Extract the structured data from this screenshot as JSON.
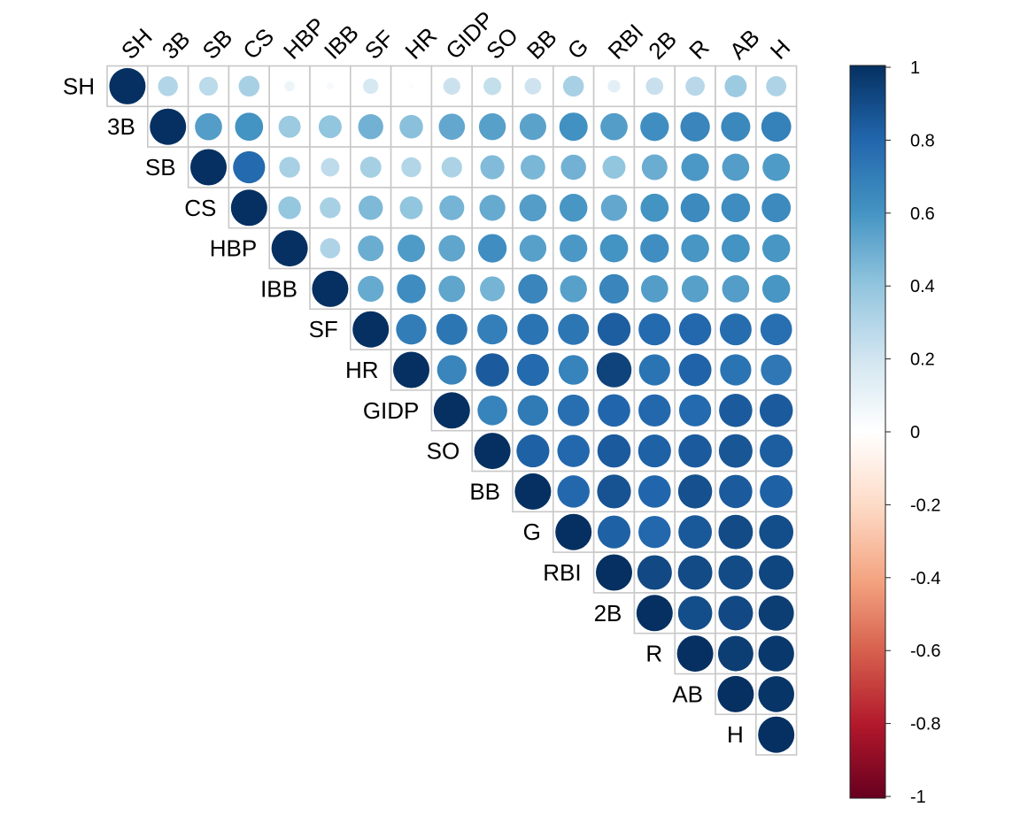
{
  "chart_data": {
    "type": "heatmap",
    "style": "corrplot-upper-circle",
    "title": "",
    "variables": [
      "SH",
      "3B",
      "SB",
      "CS",
      "HBP",
      "IBB",
      "SF",
      "HR",
      "GIDP",
      "SO",
      "BB",
      "G",
      "RBI",
      "2B",
      "R",
      "AB",
      "H"
    ],
    "matrix_upper": [
      [
        1.0,
        0.3,
        0.27,
        0.33,
        0.08,
        0.04,
        0.18,
        0.02,
        0.22,
        0.24,
        0.21,
        0.33,
        0.12,
        0.23,
        0.28,
        0.37,
        0.31
      ],
      [
        1.0,
        0.56,
        0.6,
        0.37,
        0.4,
        0.48,
        0.42,
        0.52,
        0.55,
        0.54,
        0.61,
        0.56,
        0.62,
        0.66,
        0.65,
        0.68
      ],
      [
        1.0,
        0.78,
        0.33,
        0.26,
        0.34,
        0.3,
        0.32,
        0.44,
        0.46,
        0.48,
        0.4,
        0.5,
        0.58,
        0.56,
        0.57
      ],
      [
        1.0,
        0.39,
        0.33,
        0.45,
        0.4,
        0.47,
        0.51,
        0.56,
        0.59,
        0.52,
        0.6,
        0.64,
        0.63,
        0.64
      ],
      [
        1.0,
        0.31,
        0.5,
        0.57,
        0.53,
        0.62,
        0.55,
        0.58,
        0.6,
        0.62,
        0.59,
        0.6,
        0.59
      ],
      [
        1.0,
        0.51,
        0.63,
        0.53,
        0.47,
        0.66,
        0.55,
        0.66,
        0.56,
        0.55,
        0.56,
        0.59
      ],
      [
        1.0,
        0.7,
        0.73,
        0.69,
        0.74,
        0.73,
        0.83,
        0.78,
        0.79,
        0.77,
        0.76
      ],
      [
        1.0,
        0.66,
        0.84,
        0.78,
        0.67,
        0.93,
        0.74,
        0.81,
        0.74,
        0.72
      ],
      [
        1.0,
        0.67,
        0.71,
        0.76,
        0.8,
        0.79,
        0.78,
        0.84,
        0.84
      ],
      [
        1.0,
        0.82,
        0.79,
        0.84,
        0.82,
        0.84,
        0.86,
        0.83
      ],
      [
        1.0,
        0.79,
        0.87,
        0.8,
        0.88,
        0.84,
        0.82
      ],
      [
        1.0,
        0.82,
        0.79,
        0.85,
        0.9,
        0.89
      ],
      [
        1.0,
        0.91,
        0.9,
        0.9,
        0.92
      ],
      [
        1.0,
        0.89,
        0.91,
        0.95
      ],
      [
        1.0,
        0.95,
        0.97
      ],
      [
        1.0,
        0.98
      ],
      [
        1.0
      ]
    ],
    "colorbar": {
      "range": [
        -1,
        1
      ],
      "ticks": [
        "1",
        "0.8",
        "0.6",
        "0.4",
        "0.2",
        "0",
        "-0.2",
        "-0.4",
        "-0.6",
        "-0.8",
        "-1"
      ],
      "palette": [
        "#67001f",
        "#b2182b",
        "#d6604d",
        "#f4a582",
        "#fddbc7",
        "#ffffff",
        "#d1e5f0",
        "#92c5de",
        "#4393c3",
        "#2166ac",
        "#053061"
      ]
    }
  }
}
